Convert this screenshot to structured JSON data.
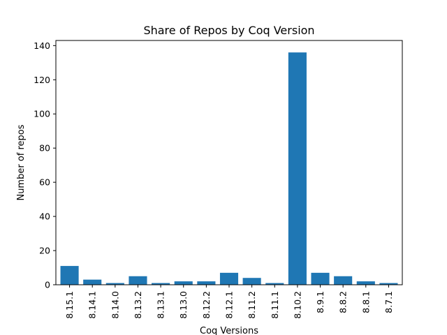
{
  "chart_data": {
    "type": "bar",
    "title": "Share of Repos by Coq Version",
    "xlabel": "Coq Versions",
    "ylabel": "Number of repos",
    "categories": [
      "8.15.1",
      "8.14.1",
      "8.14.0",
      "8.13.2",
      "8.13.1",
      "8.13.0",
      "8.12.2",
      "8.12.1",
      "8.11.2",
      "8.11.1",
      "8.10.2",
      "8.9.1",
      "8.8.2",
      "8.8.1",
      "8.7.1"
    ],
    "values": [
      11,
      3,
      1,
      5,
      1,
      2,
      2,
      7,
      4,
      1,
      136,
      7,
      5,
      2,
      1
    ],
    "ylim": [
      0,
      143
    ],
    "yticks": [
      0,
      20,
      40,
      60,
      80,
      100,
      120,
      140
    ],
    "bar_color": "#1f77b4",
    "grid": false,
    "legend": "none"
  }
}
